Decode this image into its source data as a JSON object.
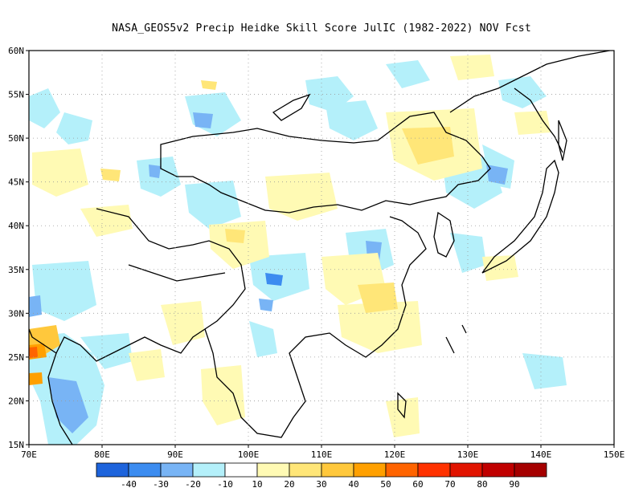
{
  "title": "NASA_GEOS5v2 Precip Heidke Skill Score JulIC (1982-2022) NOV Fcst",
  "map": {
    "lon_range": [
      70,
      150
    ],
    "lat_range": [
      15,
      60
    ],
    "lon_ticks": [
      "70E",
      "80E",
      "90E",
      "100E",
      "110E",
      "120E",
      "130E",
      "140E",
      "150E"
    ],
    "lat_ticks": [
      "15N",
      "20N",
      "25N",
      "30N",
      "35N",
      "40N",
      "45N",
      "50N",
      "55N",
      "60N"
    ]
  },
  "colorbar": {
    "labels": [
      "-40",
      "-30",
      "-20",
      "-10",
      "10",
      "20",
      "30",
      "40",
      "50",
      "60",
      "70",
      "80",
      "90"
    ],
    "colors": [
      "#1e64dc",
      "#3c8cf0",
      "#78b4f5",
      "#b4f0fa",
      "#ffffff",
      "#fffab4",
      "#ffe678",
      "#ffc83c",
      "#ffa000",
      "#ff6400",
      "#ff3200",
      "#e11400",
      "#c00000",
      "#a50000"
    ]
  }
}
